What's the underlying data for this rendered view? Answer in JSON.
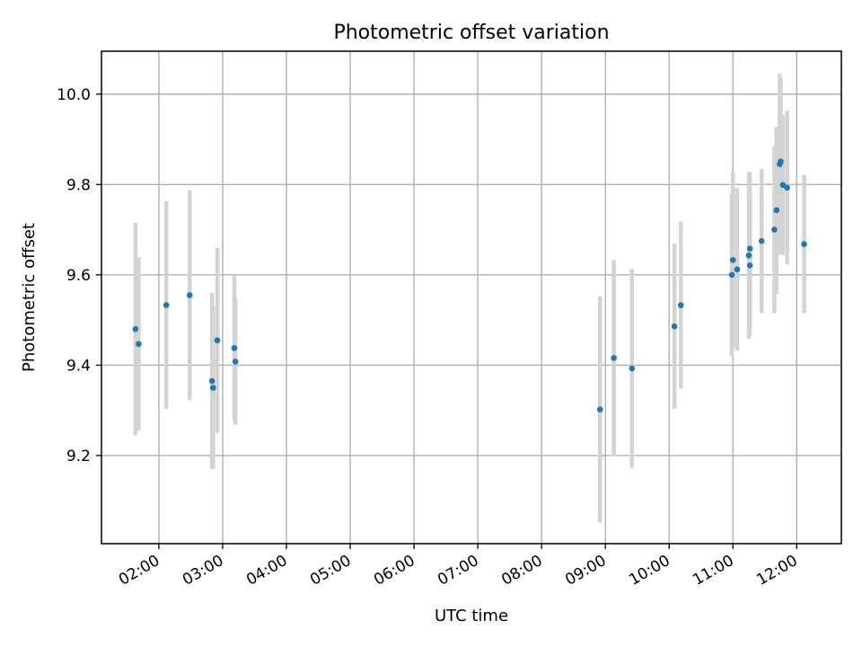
{
  "chart_data": {
    "type": "scatter",
    "title": "Photometric offset variation",
    "xlabel": "UTC time",
    "ylabel": "Photometric offset",
    "x_is_time": true,
    "xlim": [
      "01:06",
      "12:42"
    ],
    "ylim": [
      9.005,
      10.095
    ],
    "grid": true,
    "x_ticks": [
      "02:00",
      "03:00",
      "04:00",
      "05:00",
      "06:00",
      "07:00",
      "08:00",
      "09:00",
      "10:00",
      "11:00",
      "12:00"
    ],
    "y_ticks": [
      "9.2",
      "9.4",
      "9.6",
      "9.8",
      "10.0"
    ],
    "y_tick_values": [
      9.2,
      9.4,
      9.6,
      9.8,
      10.0
    ],
    "colors": {
      "point": "#1f77b4",
      "errorbar": "#d3d3d3",
      "grid": "#b0b0b0"
    },
    "series": [
      {
        "x": [
          "01:38",
          "01:41",
          "02:07",
          "02:29",
          "02:50",
          "02:51",
          "02:55",
          "03:11",
          "03:12",
          "08:55",
          "09:08",
          "09:25",
          "10:05",
          "10:11",
          "10:59",
          "11:00",
          "11:04",
          "11:15",
          "11:16",
          "11:16",
          "11:27",
          "11:39",
          "11:41",
          "11:44",
          "11:45",
          "11:47",
          "11:51",
          "12:07"
        ],
        "y": [
          9.48,
          9.447,
          9.533,
          9.555,
          9.365,
          9.35,
          9.455,
          9.438,
          9.408,
          9.302,
          9.416,
          9.393,
          9.486,
          9.533,
          9.6,
          9.633,
          9.612,
          9.643,
          9.658,
          9.621,
          9.675,
          9.7,
          9.743,
          9.845,
          9.851,
          9.799,
          9.793,
          9.668
        ],
        "yerr": [
          0.235,
          0.192,
          0.23,
          0.232,
          0.195,
          0.18,
          0.205,
          0.16,
          0.14,
          0.25,
          0.217,
          0.22,
          0.183,
          0.185,
          0.18,
          0.195,
          0.18,
          0.185,
          0.17,
          0.155,
          0.16,
          0.185,
          0.185,
          0.2,
          0.185,
          0.155,
          0.17,
          0.153
        ]
      }
    ]
  }
}
